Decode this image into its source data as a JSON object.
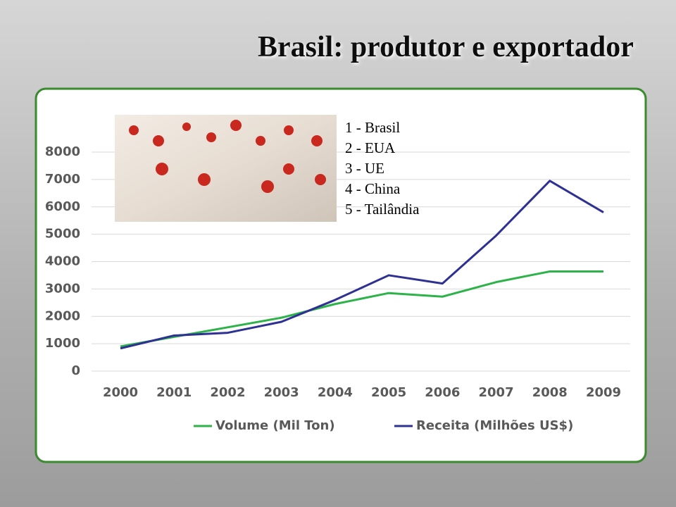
{
  "title": "Brasil: produtor e exportador",
  "ranking": [
    "1 - Brasil",
    "2 - EUA",
    "3 - UE",
    "4 - China",
    "5 - Tailândia"
  ],
  "chart_data": {
    "type": "line",
    "categories": [
      "2000",
      "2001",
      "2002",
      "2003",
      "2004",
      "2005",
      "2006",
      "2007",
      "2008",
      "2009"
    ],
    "series": [
      {
        "name": "Volume (Mil Ton)",
        "color": "#2db34a",
        "values": [
          900,
          1250,
          1600,
          1950,
          2450,
          2850,
          2720,
          3250,
          3640,
          3640
        ]
      },
      {
        "name": "Receita (Milhões US$)",
        "color": "#2e3192",
        "values": [
          830,
          1300,
          1400,
          1800,
          2600,
          3500,
          3200,
          4950,
          6950,
          5800
        ]
      }
    ],
    "ylim": [
      0,
      8000
    ],
    "yticks": [
      0,
      1000,
      2000,
      3000,
      4000,
      5000,
      6000,
      7000,
      8000
    ],
    "grid": true,
    "legend": "bottom"
  }
}
